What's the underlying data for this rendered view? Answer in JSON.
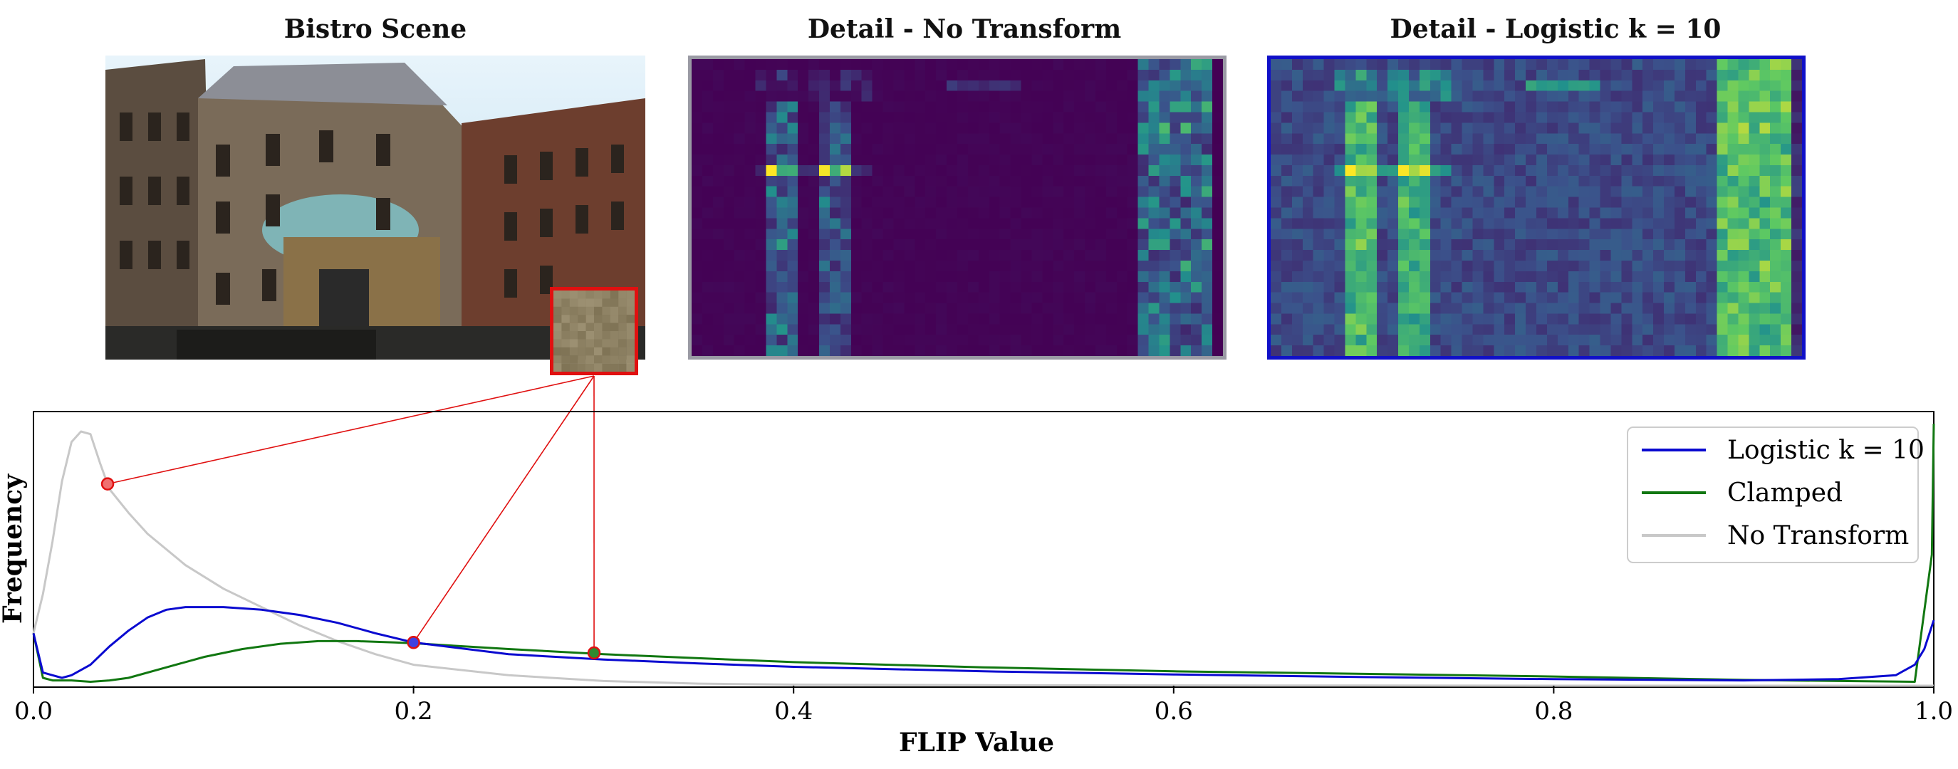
{
  "panels": {
    "scene_title": "Bistro Scene",
    "no_transform_title": "Detail - No Transform",
    "logistic_title": "Detail - Logistic k = 10"
  },
  "chart_data": {
    "type": "line",
    "xlabel": "FLIP Value",
    "ylabel": "Frequency",
    "xlim": [
      0.0,
      1.0
    ],
    "ylim": [
      0,
      1
    ],
    "x_ticks": [
      "0.0",
      "0.2",
      "0.4",
      "0.6",
      "0.8",
      "1.0"
    ],
    "y_ticks_shown": false,
    "grid": false,
    "legend_position": "top-right",
    "series": [
      {
        "name": "Logistic k = 10",
        "color": "#0a0ad0",
        "x": [
          0.0,
          0.005,
          0.01,
          0.015,
          0.02,
          0.03,
          0.04,
          0.05,
          0.06,
          0.07,
          0.08,
          0.09,
          0.1,
          0.12,
          0.14,
          0.16,
          0.18,
          0.2,
          0.25,
          0.3,
          0.35,
          0.4,
          0.5,
          0.6,
          0.7,
          0.8,
          0.9,
          0.95,
          0.98,
          0.99,
          0.995,
          1.0
        ],
        "y": [
          0.2,
          0.05,
          0.04,
          0.03,
          0.04,
          0.08,
          0.15,
          0.21,
          0.26,
          0.29,
          0.3,
          0.3,
          0.3,
          0.29,
          0.27,
          0.24,
          0.2,
          0.165,
          0.12,
          0.1,
          0.085,
          0.072,
          0.055,
          0.043,
          0.033,
          0.025,
          0.02,
          0.025,
          0.04,
          0.08,
          0.14,
          0.25
        ]
      },
      {
        "name": "Clamped",
        "color": "#117711",
        "x": [
          0.0,
          0.005,
          0.01,
          0.02,
          0.03,
          0.04,
          0.05,
          0.07,
          0.09,
          0.11,
          0.13,
          0.15,
          0.17,
          0.19,
          0.2,
          0.25,
          0.3,
          0.35,
          0.4,
          0.5,
          0.6,
          0.7,
          0.8,
          0.9,
          0.95,
          0.99,
          0.999,
          1.0
        ],
        "y": [
          0.2,
          0.03,
          0.02,
          0.02,
          0.015,
          0.02,
          0.03,
          0.07,
          0.11,
          0.14,
          0.16,
          0.17,
          0.17,
          0.165,
          0.162,
          0.14,
          0.12,
          0.105,
          0.09,
          0.07,
          0.055,
          0.045,
          0.035,
          0.022,
          0.018,
          0.015,
          0.5,
          1.0
        ]
      },
      {
        "name": "No Transform",
        "color": "#c8c8c8",
        "x": [
          0.0,
          0.005,
          0.01,
          0.015,
          0.02,
          0.025,
          0.03,
          0.035,
          0.04,
          0.05,
          0.06,
          0.08,
          0.1,
          0.12,
          0.14,
          0.16,
          0.18,
          0.2,
          0.25,
          0.3,
          0.35,
          0.4,
          0.5,
          0.6,
          0.8,
          1.0
        ],
        "y": [
          0.2,
          0.35,
          0.55,
          0.78,
          0.93,
          0.97,
          0.96,
          0.85,
          0.75,
          0.66,
          0.58,
          0.46,
          0.37,
          0.3,
          0.23,
          0.17,
          0.12,
          0.08,
          0.04,
          0.018,
          0.008,
          0.004,
          0.002,
          0.001,
          0.0,
          0.0
        ]
      }
    ],
    "highlighted_points": [
      {
        "x": 0.039,
        "y": 0.77,
        "fill": "#f07070"
      },
      {
        "x": 0.2,
        "y": 0.165,
        "fill": "#4040e0"
      },
      {
        "x": 0.295,
        "y": 0.125,
        "fill": "#2f8a2f"
      }
    ],
    "colors": {
      "callout": "#e01010",
      "axes": "#000000"
    }
  }
}
